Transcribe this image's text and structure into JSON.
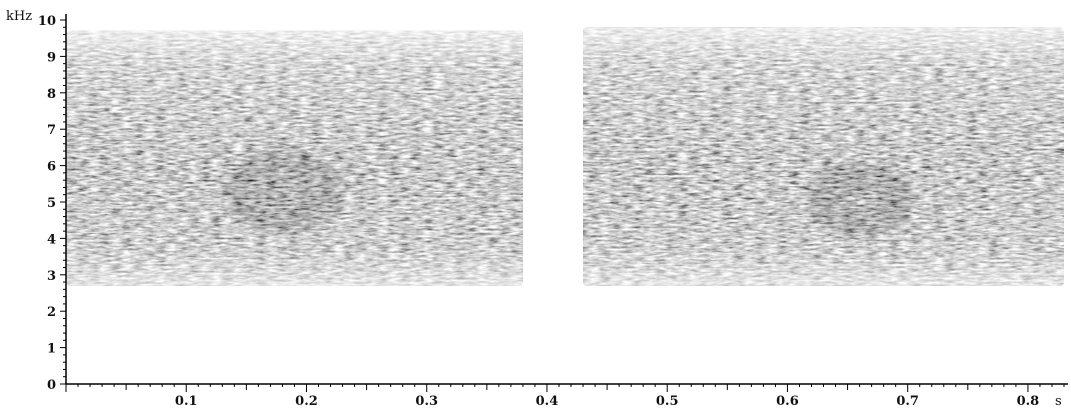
{
  "chart_data": {
    "type": "heatmap",
    "title": "",
    "xlabel": "",
    "ylabel": "",
    "x_unit": "s",
    "y_unit": "kHz",
    "xlim": [
      0,
      0.83
    ],
    "ylim": [
      0,
      10
    ],
    "x_ticks": [
      "0.1",
      "0.2",
      "0.3",
      "0.4",
      "0.5",
      "0.6",
      "0.7",
      "0.8"
    ],
    "y_ticks": [
      "0",
      "1",
      "2",
      "3",
      "4",
      "5",
      "6",
      "7",
      "8",
      "9",
      "10"
    ],
    "colormap": "grayscale (white = low, black = high)",
    "segments": [
      {
        "t_start": 0.0,
        "t_end": 0.38,
        "f_low_khz": 2.7,
        "f_high_khz": 9.7
      },
      {
        "t_start": 0.43,
        "t_end": 0.83,
        "f_low_khz": 2.7,
        "f_high_khz": 9.8
      }
    ],
    "dense_regions": [
      {
        "t_start": 0.125,
        "t_end": 0.235,
        "f_low_khz": 4.0,
        "f_high_khz": 6.6
      },
      {
        "t_start": 0.61,
        "t_end": 0.71,
        "f_low_khz": 3.9,
        "f_high_khz": 6.2
      }
    ]
  }
}
